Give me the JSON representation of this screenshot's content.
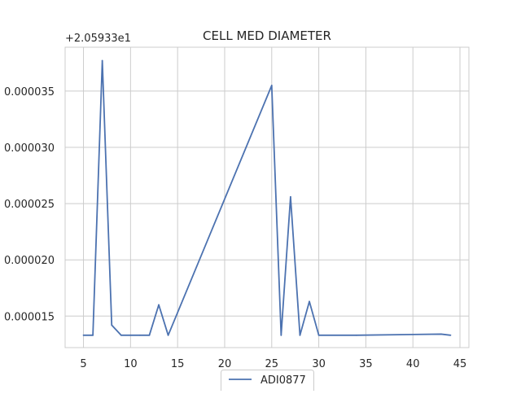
{
  "chart_data": {
    "type": "line",
    "title": "CELL MED DIAMETER",
    "offset_label": "+2.05933e1",
    "xlabel": "",
    "ylabel": "",
    "xlim": [
      3.05,
      45.95
    ],
    "ylim": [
      1.22e-05,
      3.89e-05
    ],
    "x_ticks": [
      5,
      10,
      15,
      20,
      25,
      30,
      35,
      40,
      45
    ],
    "x_tick_labels": [
      "5",
      "10",
      "15",
      "20",
      "25",
      "30",
      "35",
      "40",
      "45"
    ],
    "y_ticks": [
      1.5e-05,
      2e-05,
      2.5e-05,
      3e-05,
      3.5e-05
    ],
    "y_tick_labels": [
      "0.000015",
      "0.000020",
      "0.000025",
      "0.000030",
      "0.000035"
    ],
    "grid": true,
    "legend_position": "bottom-center",
    "series": [
      {
        "name": "ADI0877",
        "color": "#4c72b0",
        "x": [
          5,
          6,
          7,
          8,
          9,
          10,
          11,
          12,
          13,
          14,
          25,
          26,
          27,
          28,
          29,
          30,
          34,
          43,
          44
        ],
        "y": [
          1.33e-05,
          1.33e-05,
          3.77e-05,
          1.42e-05,
          1.33e-05,
          1.33e-05,
          1.33e-05,
          1.33e-05,
          1.6e-05,
          1.33e-05,
          3.55e-05,
          1.33e-05,
          2.56e-05,
          1.33e-05,
          1.63e-05,
          1.33e-05,
          1.33e-05,
          1.34e-05,
          1.33e-05
        ]
      }
    ]
  }
}
